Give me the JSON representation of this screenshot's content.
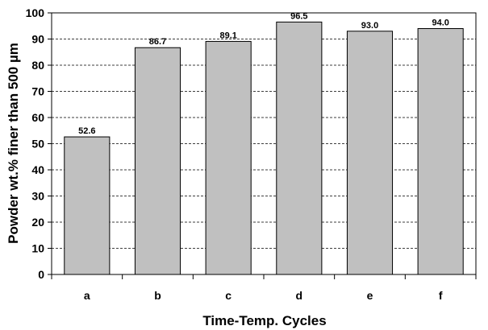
{
  "chart_data": {
    "type": "bar",
    "categories": [
      "a",
      "b",
      "c",
      "d",
      "e",
      "f"
    ],
    "values": [
      52.6,
      86.7,
      89.1,
      96.5,
      93.0,
      94.0
    ],
    "value_labels": [
      "52.6",
      "86.7",
      "89.1",
      "96.5",
      "93.0",
      "94.0"
    ],
    "xlabel": "Time-Temp. Cycles",
    "ylabel": "Powder wt.% finer than 500 µm",
    "ylim": [
      0,
      100
    ],
    "yticks": [
      0,
      10,
      20,
      30,
      40,
      50,
      60,
      70,
      80,
      90,
      100
    ],
    "grid": "horizontal dashed",
    "legend": "none",
    "colors": {
      "bar_fill": "#c0c0c0",
      "bar_stroke": "#000000",
      "grid": "#000000"
    }
  }
}
